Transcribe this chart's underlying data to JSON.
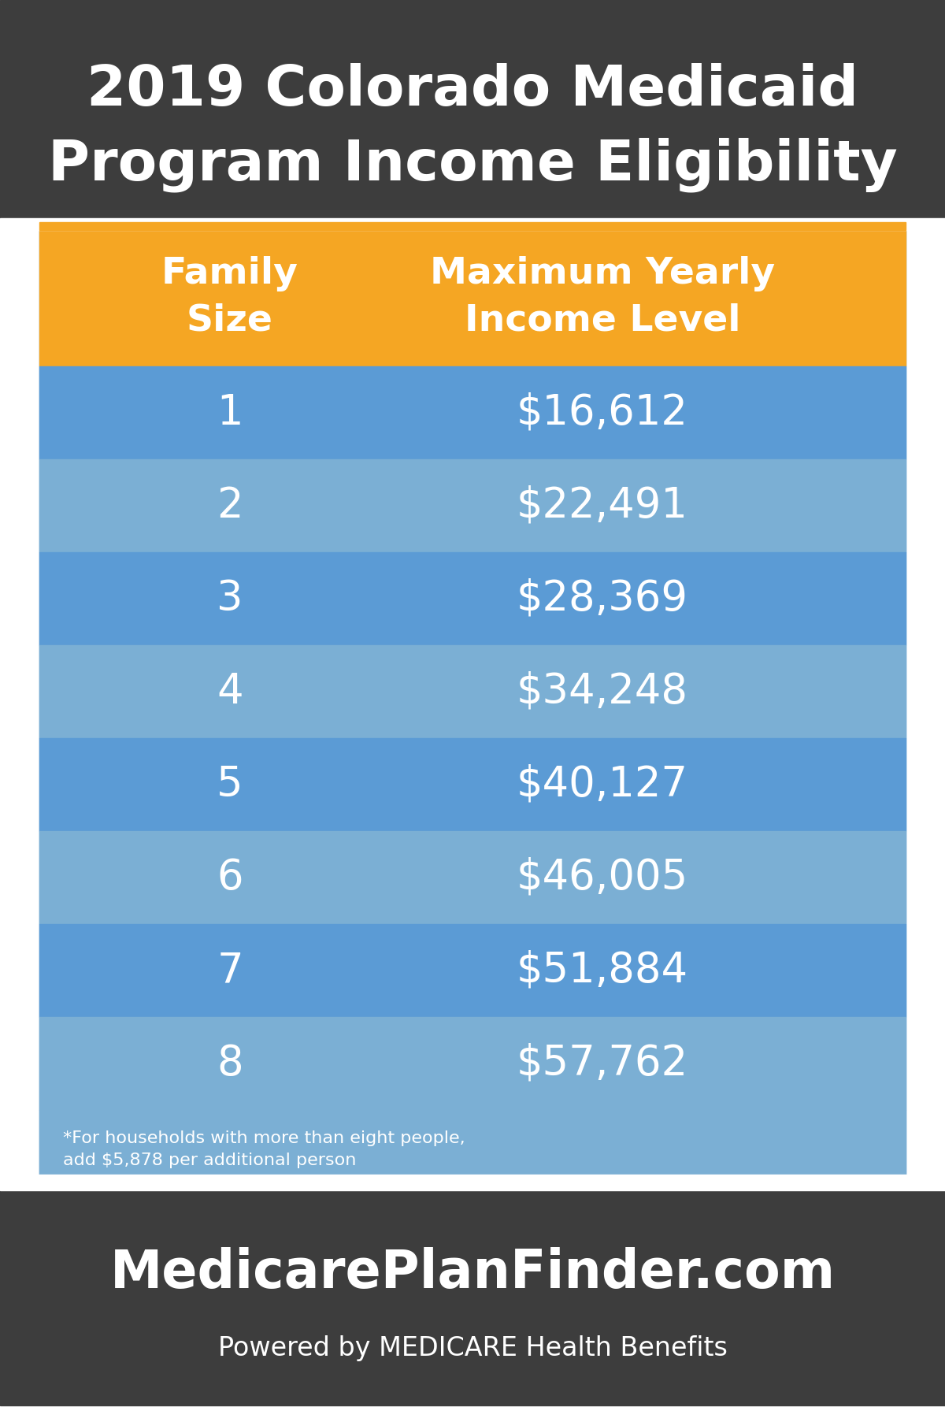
{
  "title_line1": "2019 Colorado Medicaid",
  "title_line2": "Program Income Eligibility",
  "title_bg_color": "#3d3d3d",
  "title_text_color": "#ffffff",
  "header_col1": "Family\nSize",
  "header_col2": "Maximum Yearly\nIncome Level",
  "header_bg_color": "#f5a623",
  "header_text_color": "#ffffff",
  "row_colors_alt": [
    "#5b9bd5",
    "#7bafd4"
  ],
  "data_rows": [
    [
      "1",
      "$16,612"
    ],
    [
      "2",
      "$22,491"
    ],
    [
      "3",
      "$28,369"
    ],
    [
      "4",
      "$34,248"
    ],
    [
      "5",
      "$40,127"
    ],
    [
      "6",
      "$46,005"
    ],
    [
      "7",
      "$51,884"
    ],
    [
      "8",
      "$57,762"
    ]
  ],
  "footnote": "*For households with more than eight people,\nadd $5,878 per additional person",
  "footnote_bg_color": "#7bafd4",
  "footnote_text_color": "#ffffff",
  "footer_bg_color": "#3d3d3d",
  "footer_text_color": "#ffffff",
  "footer_main": "MedicarePlanFinder.com",
  "footer_sub": "Powered by MEDICARE Health Benefits",
  "table_bg_color": "#5b9bd5",
  "outer_bg_color": "#ffffff",
  "data_fontsize": 38,
  "header_fontsize": 34,
  "title_fontsize": 52,
  "footer_main_fontsize": 48,
  "footer_sub_fontsize": 24
}
